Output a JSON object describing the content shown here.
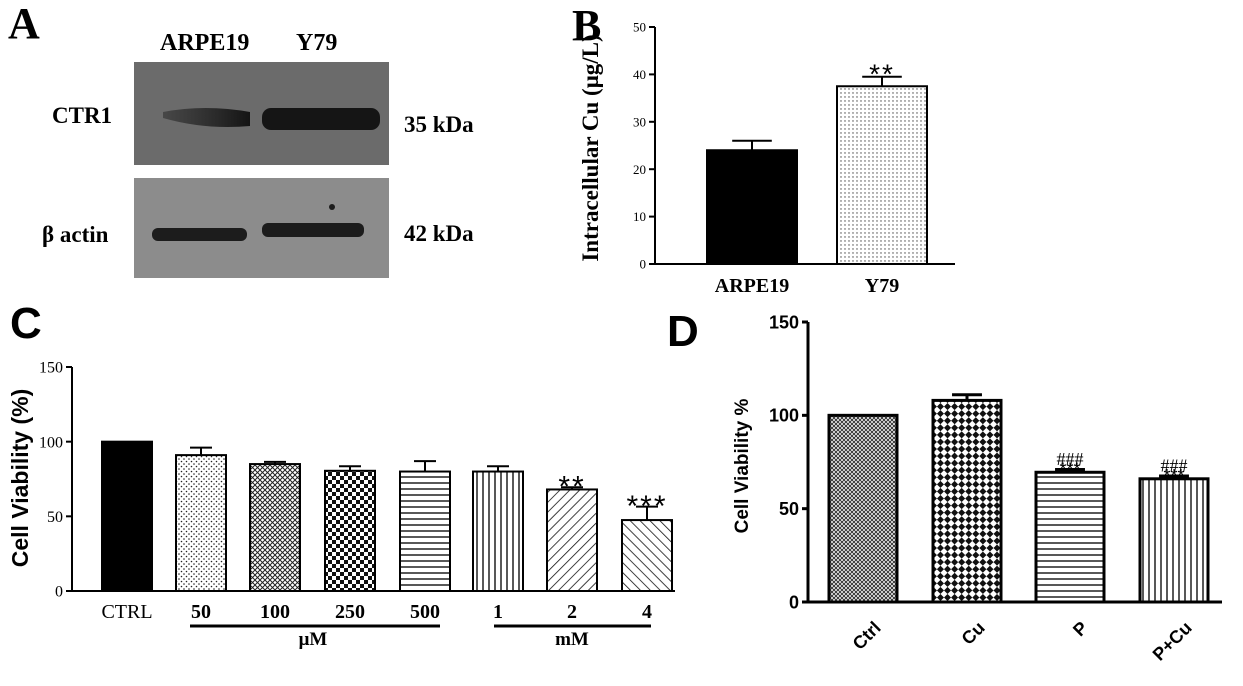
{
  "panels": {
    "A": {
      "letter": "A",
      "lane_labels": [
        "ARPE19",
        "Y79"
      ],
      "bands": [
        {
          "label": "CTR1",
          "size": "35 kDa"
        },
        {
          "label": "β actin",
          "size": "42 kDa"
        }
      ]
    },
    "B": {
      "letter": "B"
    },
    "C": {
      "letter": "C",
      "group_labels": [
        "μM",
        "mM"
      ]
    },
    "D": {
      "letter": "D"
    }
  },
  "colors": {
    "ink": "#000000",
    "blot_bg": "#686868",
    "blot_bg2": "#8a8a8a",
    "band": "#1a1a1a"
  },
  "chart_data": [
    {
      "id": "B",
      "type": "bar",
      "categories": [
        "ARPE19",
        "Y79"
      ],
      "values": [
        24,
        37.5
      ],
      "errors": [
        2,
        2
      ],
      "fills": [
        "solid-black",
        "fine-dots"
      ],
      "annotations": [
        "",
        "**"
      ],
      "ylabel": "Intracellular Cu (μg/L)",
      "ylim": [
        0,
        50
      ],
      "yticks": [
        0,
        10,
        20,
        30,
        40,
        50
      ],
      "grid": false,
      "legend": "none"
    },
    {
      "id": "C",
      "type": "bar",
      "categories": [
        "CTRL",
        "50",
        "100",
        "250",
        "500",
        "1",
        "2",
        "4"
      ],
      "values": [
        100,
        91,
        85,
        80.5,
        80,
        80,
        68,
        47.5
      ],
      "errors": [
        0,
        5,
        1.5,
        3,
        7,
        3.5,
        1.5,
        9
      ],
      "fills": [
        "solid-black",
        "dots",
        "crosshatch",
        "checker",
        "horizontal-lines",
        "vertical-lines",
        "diagonal-lines",
        "diagonal-lines-back"
      ],
      "annotations": [
        "",
        "",
        "",
        "",
        "",
        "",
        "**",
        "***"
      ],
      "ylabel": "Cell Viability (%)",
      "ylim": [
        0,
        150
      ],
      "yticks": [
        0,
        50,
        100,
        150
      ],
      "grid": false,
      "legend": "none"
    },
    {
      "id": "D",
      "type": "bar",
      "categories": [
        "Ctrl",
        "Cu",
        "P",
        "P+Cu"
      ],
      "values": [
        100,
        108,
        69.5,
        66
      ],
      "errors": [
        0,
        3,
        1.5,
        1.5
      ],
      "fills": [
        "dense-crosshatch",
        "checkerboard",
        "horizontal-lines",
        "vertical-lines"
      ],
      "annotations": [
        "",
        "",
        "***",
        "***"
      ],
      "annotations2": [
        "",
        "",
        "###",
        "###"
      ],
      "ylabel": "Cell Viability %",
      "ylim": [
        0,
        150
      ],
      "yticks": [
        0,
        50,
        100,
        150
      ],
      "grid": false,
      "legend": "none"
    }
  ]
}
